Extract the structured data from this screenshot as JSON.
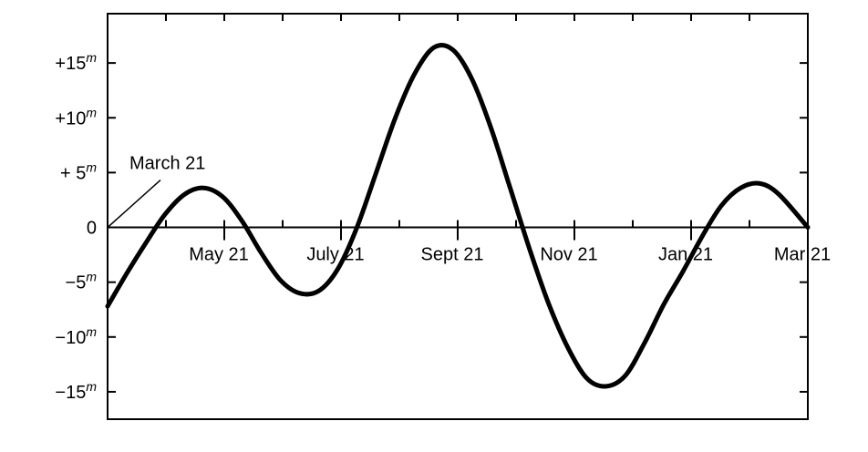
{
  "chart_data": {
    "type": "line",
    "title": "",
    "xlabel": "",
    "ylabel": "",
    "grid": false,
    "x_tick_labels": [
      "May 21",
      "July 21",
      "Sept 21",
      "Nov 21",
      "Jan 21",
      "Mar 21"
    ],
    "y_ticks": [
      {
        "value": 15,
        "label": "+15",
        "sup": "m"
      },
      {
        "value": 10,
        "label": "+10",
        "sup": "m"
      },
      {
        "value": 5,
        "label": "+ 5",
        "sup": "m"
      },
      {
        "value": 0,
        "label": "0",
        "sup": ""
      },
      {
        "value": -5,
        "label": "−5",
        "sup": "m"
      },
      {
        "value": -10,
        "label": "−10",
        "sup": "m"
      },
      {
        "value": -15,
        "label": "−15",
        "sup": "m"
      }
    ],
    "ylim": [
      -17.5,
      19.5
    ],
    "x_range_days": [
      0,
      365
    ],
    "annotation": {
      "text": "March 21",
      "x_day": 0,
      "y": 0
    },
    "series": [
      {
        "x_day": [
          0,
          10,
          20,
          30,
          40,
          50,
          60,
          70,
          80,
          90,
          100,
          110,
          120,
          130,
          140,
          150,
          160,
          170,
          180,
          190,
          200,
          210,
          220,
          230,
          240,
          250,
          260,
          270,
          280,
          290,
          300,
          310,
          320,
          330,
          340,
          350,
          365
        ],
        "y": [
          -7.2,
          -4.2,
          -1.4,
          1.2,
          3.0,
          3.6,
          2.8,
          0.6,
          -2.3,
          -4.8,
          -6.0,
          -5.8,
          -3.8,
          0.0,
          5.0,
          10.0,
          14.0,
          16.4,
          16.2,
          13.5,
          9.0,
          3.5,
          -2.0,
          -7.0,
          -11.0,
          -13.8,
          -14.5,
          -13.5,
          -10.5,
          -7.0,
          -4.0,
          -0.8,
          2.0,
          3.6,
          4.0,
          3.0,
          0.0
        ]
      }
    ]
  }
}
